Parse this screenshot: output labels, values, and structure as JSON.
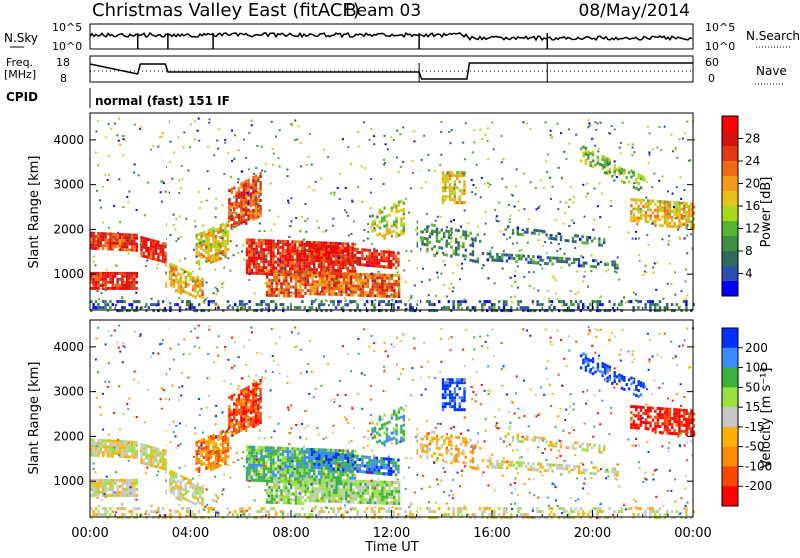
{
  "header": {
    "title": "Christmas Valley East (fitACF)",
    "beam": "Beam 03",
    "date": "08/May/2014"
  },
  "status_panels": {
    "nsky_label": "N.Sky",
    "nsky_ticks": [
      "10^5",
      "10^0"
    ],
    "nsearch_label": "N.Search",
    "freq_label_1": "Freq.",
    "freq_label_2": "[MHz]",
    "freq_ticks": [
      "18",
      "8"
    ],
    "nave_label": "Nave",
    "nave_ticks": [
      "60",
      "0"
    ],
    "cpid_label": "CPID",
    "cpid_value": "normal (fast) 151 IF"
  },
  "colorbars": {
    "power": {
      "label": "Power [dB]",
      "ticks": [
        "28",
        "24",
        "20",
        "16",
        "12",
        "8",
        "4"
      ],
      "colors": [
        "#0000ff",
        "#2b4fae",
        "#2f6b5c",
        "#3f8f40",
        "#55b531",
        "#a9d81b",
        "#e8c21a",
        "#f49a1a",
        "#f06a14",
        "#e23a14",
        "#d81010",
        "#ff0000"
      ]
    },
    "velocity": {
      "label": "Velocity [m s⁻¹]",
      "ticks": [
        "200",
        "100",
        "50",
        "15",
        "-15",
        "-50",
        "-100",
        "-200"
      ],
      "colors": [
        "#ff0000",
        "#ff4600",
        "#ff8c00",
        "#ffb000",
        "#c8c8c8",
        "#9be23f",
        "#3cb43c",
        "#3c8cff",
        "#0032ff"
      ]
    }
  },
  "chart_data": [
    {
      "type": "heatmap",
      "name": "power",
      "ylabel": "Slant Range [km]",
      "yticks": [
        "4000",
        "3000",
        "2000",
        "1000"
      ],
      "ylim": [
        200,
        4600
      ],
      "xlim": [
        0,
        24
      ],
      "xticks": [
        "00:00",
        "04:00",
        "08:00",
        "12:00",
        "16:00",
        "20:00",
        "00:00"
      ],
      "zlabel": "Power [dB]",
      "zlim": [
        0,
        30
      ]
    },
    {
      "type": "heatmap",
      "name": "velocity",
      "ylabel": "Slant Range [km]",
      "yticks": [
        "4000",
        "3000",
        "2000",
        "1000"
      ],
      "ylim": [
        200,
        4600
      ],
      "xlim": [
        0,
        24
      ],
      "xticks": [
        "00:00",
        "04:00",
        "08:00",
        "12:00",
        "16:00",
        "20:00",
        "00:00"
      ],
      "xlabel": "Time UT",
      "zlabel": "Velocity [m s⁻¹]",
      "zlim": [
        -250,
        250
      ]
    }
  ]
}
